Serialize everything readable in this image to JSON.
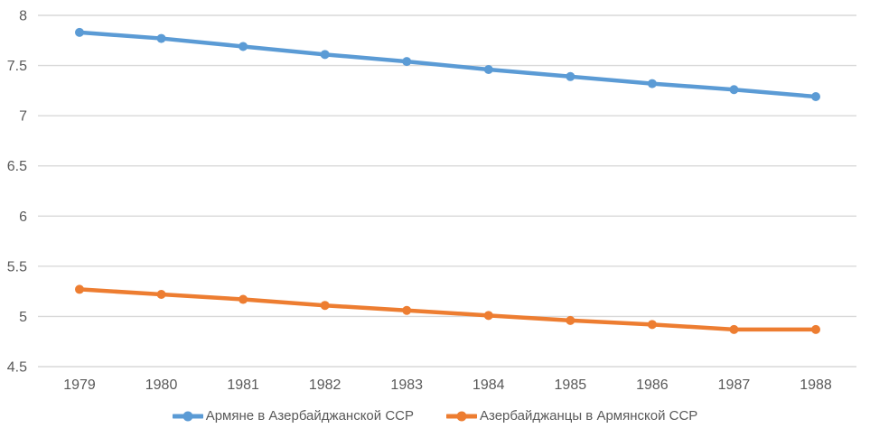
{
  "chart": {
    "colors": {
      "series1": "#5B9BD5",
      "series2": "#ED7D31",
      "gridline": "#D9D9D9",
      "label_text": "#595959",
      "background": "#FFFFFF"
    }
  },
  "chart_data": {
    "type": "line",
    "title": "",
    "xlabel": "",
    "ylabel": "",
    "categories": [
      "1979",
      "1980",
      "1981",
      "1982",
      "1983",
      "1984",
      "1985",
      "1986",
      "1987",
      "1988"
    ],
    "series": [
      {
        "name": "Армяне в Азербайджанской ССР",
        "color": "#5B9BD5",
        "marker": "circle",
        "values": [
          7.83,
          7.77,
          7.69,
          7.61,
          7.54,
          7.46,
          7.39,
          7.32,
          7.26,
          7.19
        ]
      },
      {
        "name": "Азербайджанцы в Армянской ССР",
        "color": "#ED7D31",
        "marker": "circle",
        "values": [
          5.27,
          5.22,
          5.17,
          5.11,
          5.06,
          5.01,
          4.96,
          4.92,
          4.87,
          4.87
        ]
      }
    ],
    "ylim": [
      4.5,
      8
    ],
    "ytick_step": 0.5,
    "ytick_labels": [
      "8",
      "7.5",
      "7",
      "6.5",
      "6",
      "5.5",
      "5",
      "4.5"
    ],
    "grid": true,
    "legend_position": "bottom"
  }
}
